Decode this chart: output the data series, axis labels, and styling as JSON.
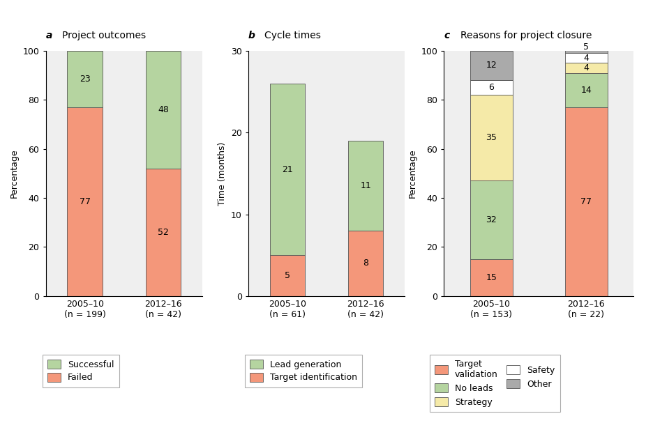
{
  "panel_a": {
    "title": "Project outcomes",
    "label": "a",
    "categories": [
      "2005–10\n(n = 199)",
      "2012–16\n(n = 42)"
    ],
    "failed": [
      77,
      52
    ],
    "successful": [
      23,
      48
    ],
    "ylabel": "Percentage",
    "ylim": [
      0,
      100
    ],
    "yticks": [
      0,
      20,
      40,
      60,
      80,
      100
    ],
    "colors": {
      "failed": "#F4977A",
      "successful": "#B5D4A0"
    }
  },
  "panel_b": {
    "title": "Cycle times",
    "label": "b",
    "categories": [
      "2005–10\n(n = 61)",
      "2012–16\n(n = 42)"
    ],
    "target_id": [
      5,
      8
    ],
    "lead_gen": [
      21,
      11
    ],
    "ylabel": "Time (months)",
    "ylim": [
      0,
      30
    ],
    "yticks": [
      0,
      10,
      20,
      30
    ],
    "colors": {
      "target_id": "#F4977A",
      "lead_gen": "#B5D4A0"
    }
  },
  "panel_c": {
    "title": "Reasons for project closure",
    "label": "c",
    "categories": [
      "2005–10\n(n = 153)",
      "2012–16\n(n = 22)"
    ],
    "target_val": [
      15,
      77
    ],
    "no_leads": [
      32,
      14
    ],
    "strategy": [
      35,
      4
    ],
    "safety": [
      6,
      4
    ],
    "other": [
      12,
      5
    ],
    "ylabel": "Percentage",
    "ylim": [
      0,
      100
    ],
    "yticks": [
      0,
      20,
      40,
      60,
      80,
      100
    ],
    "colors": {
      "target_val": "#F4977A",
      "no_leads": "#B5D4A0",
      "strategy": "#F5EAA8",
      "safety": "#FFFFFF",
      "other": "#AAAAAA"
    }
  },
  "background_color": "#EFEFEF",
  "bar_width": 0.45,
  "bar_edge_color": "#555555",
  "bar_linewidth": 0.6,
  "font_size_title": 10,
  "font_size_label": 9,
  "font_size_tick": 9,
  "font_size_bar_text": 9,
  "font_size_legend": 9
}
